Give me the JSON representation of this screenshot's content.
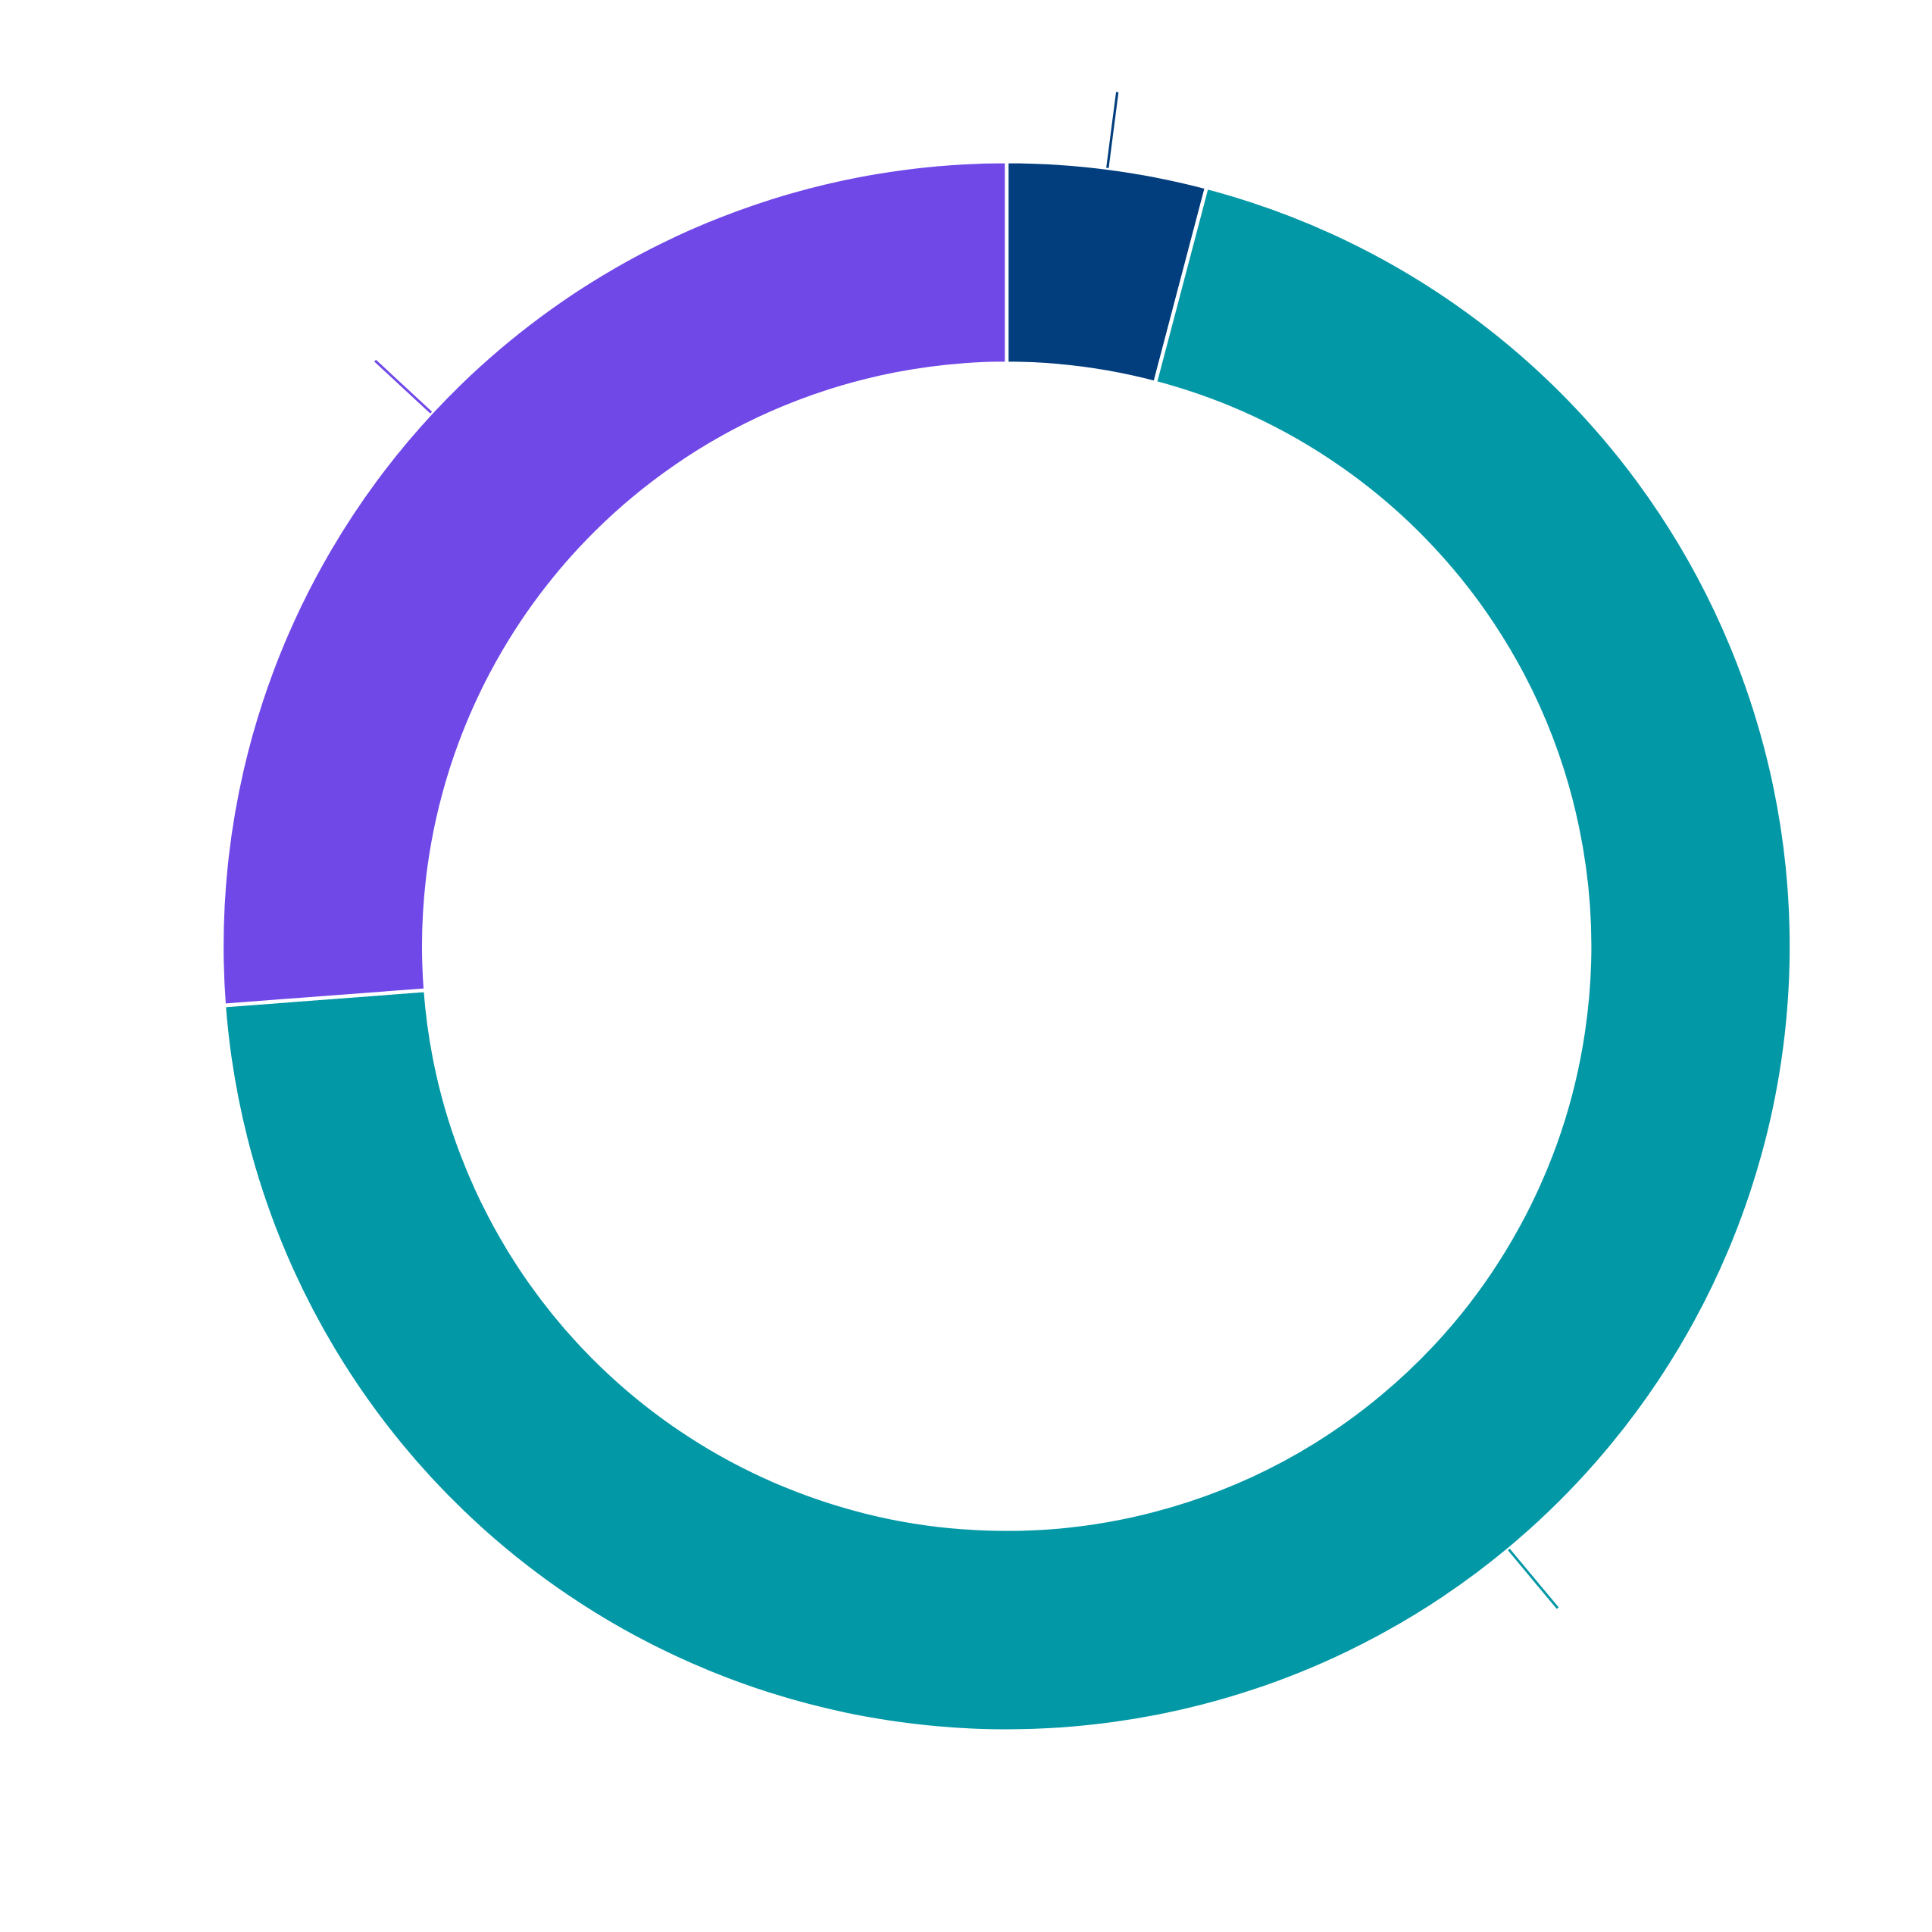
{
  "chart_data": {
    "type": "donut",
    "values": [
      4.1,
      69.7,
      26.2
    ],
    "colors": [
      "#023e7d",
      "#0398a6",
      "#7048e8"
    ],
    "start_angle": 0,
    "direction": "clockwise"
  }
}
